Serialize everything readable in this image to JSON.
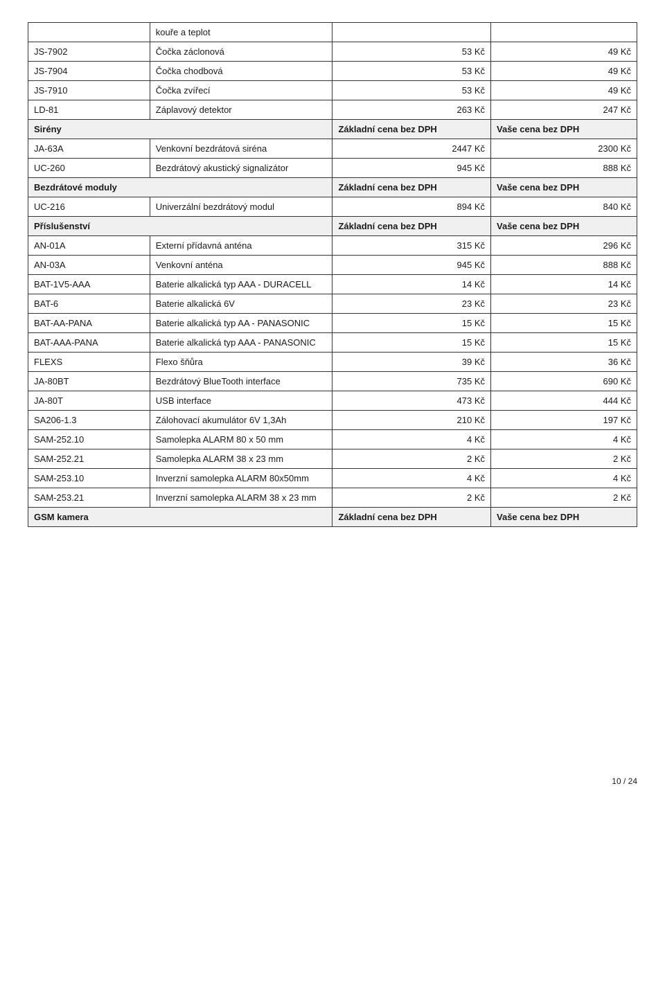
{
  "rows": [
    {
      "type": "row",
      "code": "",
      "desc": "kouře a teplot",
      "col3": "",
      "col4": ""
    },
    {
      "type": "row",
      "code": "JS-7902",
      "desc": "Čočka záclonová",
      "col3": "53 Kč",
      "col4": "49 Kč"
    },
    {
      "type": "row",
      "code": "JS-7904",
      "desc": "Čočka chodbová",
      "col3": "53 Kč",
      "col4": "49 Kč"
    },
    {
      "type": "row",
      "code": "JS-7910",
      "desc": "Čočka zvířecí",
      "col3": "53 Kč",
      "col4": "49 Kč"
    },
    {
      "type": "row",
      "code": "LD-81",
      "desc": "Záplavový detektor",
      "col3": "263 Kč",
      "col4": "247 Kč"
    },
    {
      "type": "section",
      "label": "Sirény",
      "col3": "Základní cena bez DPH",
      "col4": "Vaše cena bez DPH"
    },
    {
      "type": "row",
      "code": "JA-63A",
      "desc": "Venkovní bezdrátová siréna",
      "col3": "2447 Kč",
      "col4": "2300 Kč"
    },
    {
      "type": "row",
      "code": "UC-260",
      "desc": "Bezdrátový akustický signalizátor",
      "col3": "945 Kč",
      "col4": "888 Kč"
    },
    {
      "type": "section",
      "label": "Bezdrátové moduly",
      "col3": "Základní cena bez DPH",
      "col4": "Vaše cena bez DPH"
    },
    {
      "type": "row",
      "code": "UC-216",
      "desc": "Univerzální bezdrátový modul",
      "col3": "894 Kč",
      "col4": "840 Kč"
    },
    {
      "type": "section",
      "label": "Příslušenství",
      "col3": "Základní cena bez DPH",
      "col4": "Vaše cena bez DPH"
    },
    {
      "type": "row",
      "code": "AN-01A",
      "desc": "Externí přídavná anténa",
      "col3": "315 Kč",
      "col4": "296 Kč"
    },
    {
      "type": "row",
      "code": "AN-03A",
      "desc": "Venkovní anténa",
      "col3": "945 Kč",
      "col4": "888 Kč"
    },
    {
      "type": "row",
      "code": "BAT-1V5-AAA",
      "desc": "Baterie alkalická typ AAA - DURACELL",
      "col3": "14 Kč",
      "col4": "14 Kč"
    },
    {
      "type": "row",
      "code": "BAT-6",
      "desc": "Baterie alkalická 6V",
      "col3": "23 Kč",
      "col4": "23 Kč"
    },
    {
      "type": "row",
      "code": "BAT-AA-PANA",
      "desc": "Baterie alkalická typ AA - PANASONIC",
      "col3": "15 Kč",
      "col4": "15 Kč"
    },
    {
      "type": "row",
      "code": "BAT-AAA-PANA",
      "desc": "Baterie alkalická typ AAA - PANASONIC",
      "col3": "15 Kč",
      "col4": "15 Kč"
    },
    {
      "type": "row",
      "code": "FLEXS",
      "desc": "Flexo šňůra",
      "col3": "39 Kč",
      "col4": "36 Kč"
    },
    {
      "type": "row",
      "code": "JA-80BT",
      "desc": "Bezdrátový BlueTooth interface",
      "col3": "735 Kč",
      "col4": "690 Kč"
    },
    {
      "type": "row",
      "code": "JA-80T",
      "desc": "USB interface",
      "col3": "473 Kč",
      "col4": "444 Kč"
    },
    {
      "type": "row",
      "code": "SA206-1.3",
      "desc": "Zálohovací akumulátor 6V 1,3Ah",
      "col3": "210 Kč",
      "col4": "197 Kč"
    },
    {
      "type": "row",
      "code": "SAM-252.10",
      "desc": "Samolepka ALARM 80 x 50 mm",
      "col3": "4 Kč",
      "col4": "4 Kč"
    },
    {
      "type": "row",
      "code": "SAM-252.21",
      "desc": "Samolepka ALARM 38 x 23 mm",
      "col3": "2 Kč",
      "col4": "2 Kč"
    },
    {
      "type": "row",
      "code": "SAM-253.10",
      "desc": "Inverzní samolepka ALARM 80x50mm",
      "col3": "4 Kč",
      "col4": "4 Kč"
    },
    {
      "type": "row",
      "code": "SAM-253.21",
      "desc": "Inverzní samolepka ALARM 38 x 23 mm",
      "col3": "2 Kč",
      "col4": "2 Kč"
    },
    {
      "type": "section",
      "label": "GSM kamera",
      "col3": "Základní cena bez DPH",
      "col4": "Vaše cena bez DPH"
    }
  ],
  "footer": "10 / 24"
}
